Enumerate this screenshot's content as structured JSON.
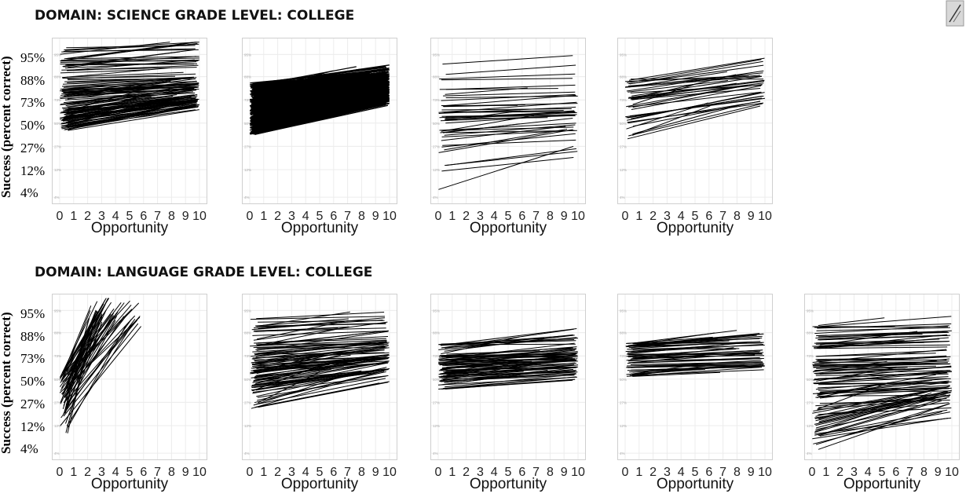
{
  "rows": [
    {
      "title": "DOMAIN: SCIENCE     GRADE LEVEL: COLLEGE",
      "ylabel": "Success (percent correct)",
      "yticks": [
        "95%",
        "88%",
        "73%",
        "50%",
        "27%",
        "12%",
        "4%"
      ]
    },
    {
      "title": "DOMAIN: LANGUAGE     GRADE LEVEL: COLLEGE",
      "ylabel": "Success (percent correct)",
      "yticks": [
        "95%",
        "88%",
        "73%",
        "50%",
        "27%",
        "12%",
        "4%"
      ]
    }
  ],
  "xlabel": "Opportunity",
  "icons": {
    "corner": "expand-corner-icon"
  },
  "chart_data": [
    {
      "type": "line",
      "row": 0,
      "panel": 1,
      "xlabel": "Opportunity",
      "ylabel": "Success (percent correct)",
      "xlim": [
        0,
        10
      ],
      "y_scale": "logit",
      "yticks": [
        "4%",
        "12%",
        "27%",
        "50%",
        "73%",
        "88%",
        "95%"
      ],
      "xticks": [
        0,
        1,
        2,
        3,
        4,
        5,
        6,
        7,
        8,
        9,
        10
      ],
      "n_lines": 130,
      "start_range": [
        42,
        97
      ],
      "end_range": [
        62,
        97
      ],
      "x_extent": [
        0,
        10
      ]
    },
    {
      "type": "line",
      "row": 0,
      "panel": 2,
      "xlabel": "Opportunity",
      "ylabel": "Success (percent correct)",
      "xlim": [
        0,
        10
      ],
      "y_scale": "logit",
      "yticks": [
        "4%",
        "12%",
        "27%",
        "50%",
        "73%",
        "88%",
        "95%"
      ],
      "xticks": [
        0,
        1,
        2,
        3,
        4,
        5,
        6,
        7,
        8,
        9,
        10
      ],
      "n_lines": 600,
      "start_range": [
        38,
        85
      ],
      "end_range": [
        68,
        93
      ],
      "x_extent": [
        0,
        10
      ]
    },
    {
      "type": "line",
      "row": 0,
      "panel": 3,
      "xlabel": "Opportunity",
      "ylabel": "Success (percent correct)",
      "xlim": [
        0,
        10
      ],
      "y_scale": "logit",
      "yticks": [
        "4%",
        "12%",
        "27%",
        "50%",
        "73%",
        "88%",
        "95%"
      ],
      "xticks": [
        0,
        1,
        2,
        3,
        4,
        5,
        6,
        7,
        8,
        9,
        10
      ],
      "n_lines": 45,
      "start_range": [
        5,
        95
      ],
      "end_range": [
        12,
        96
      ],
      "x_extent": [
        0,
        10
      ]
    },
    {
      "type": "line",
      "row": 0,
      "panel": 4,
      "xlabel": "Opportunity",
      "ylabel": "Success (percent correct)",
      "xlim": [
        0,
        10
      ],
      "y_scale": "logit",
      "yticks": [
        "4%",
        "12%",
        "27%",
        "50%",
        "73%",
        "88%",
        "95%"
      ],
      "xticks": [
        0,
        1,
        2,
        3,
        4,
        5,
        6,
        7,
        8,
        9,
        10
      ],
      "n_lines": 40,
      "start_range": [
        33,
        89
      ],
      "end_range": [
        62,
        96
      ],
      "x_extent": [
        0,
        10
      ]
    },
    {
      "type": "line",
      "row": 1,
      "panel": 1,
      "xlabel": "Opportunity",
      "ylabel": "Success (percent correct)",
      "xlim": [
        0,
        10
      ],
      "y_scale": "logit",
      "yticks": [
        "4%",
        "12%",
        "27%",
        "50%",
        "73%",
        "88%",
        "95%"
      ],
      "xticks": [
        0,
        1,
        2,
        3,
        4,
        5,
        6,
        7,
        8,
        9,
        10
      ],
      "n_lines": 60,
      "start_range": [
        8,
        60
      ],
      "end_range": [
        90,
        98
      ],
      "x_extent": [
        0,
        6
      ]
    },
    {
      "type": "line",
      "row": 1,
      "panel": 2,
      "xlabel": "Opportunity",
      "ylabel": "Success (percent correct)",
      "xlim": [
        0,
        10
      ],
      "y_scale": "logit",
      "yticks": [
        "4%",
        "12%",
        "27%",
        "50%",
        "73%",
        "88%",
        "95%"
      ],
      "xticks": [
        0,
        1,
        2,
        3,
        4,
        5,
        6,
        7,
        8,
        9,
        10
      ],
      "n_lines": 110,
      "start_range": [
        22,
        94
      ],
      "end_range": [
        45,
        98
      ],
      "x_extent": [
        0,
        10
      ]
    },
    {
      "type": "line",
      "row": 1,
      "panel": 3,
      "xlabel": "Opportunity",
      "ylabel": "Success (percent correct)",
      "xlim": [
        0,
        10
      ],
      "y_scale": "logit",
      "yticks": [
        "4%",
        "12%",
        "27%",
        "50%",
        "73%",
        "88%",
        "95%"
      ],
      "xticks": [
        0,
        1,
        2,
        3,
        4,
        5,
        6,
        7,
        8,
        9,
        10
      ],
      "n_lines": 90,
      "start_range": [
        38,
        85
      ],
      "end_range": [
        45,
        94
      ],
      "x_extent": [
        0,
        10
      ]
    },
    {
      "type": "line",
      "row": 1,
      "panel": 4,
      "xlabel": "Opportunity",
      "ylabel": "Success (percent correct)",
      "xlim": [
        0,
        10
      ],
      "y_scale": "logit",
      "yticks": [
        "4%",
        "12%",
        "27%",
        "50%",
        "73%",
        "88%",
        "95%"
      ],
      "xticks": [
        0,
        1,
        2,
        3,
        4,
        5,
        6,
        7,
        8,
        9,
        10
      ],
      "n_lines": 60,
      "start_range": [
        52,
        83
      ],
      "end_range": [
        56,
        90
      ],
      "x_extent": [
        0,
        10
      ]
    },
    {
      "type": "line",
      "row": 1,
      "panel": 5,
      "xlabel": "Opportunity",
      "ylabel": "Success (percent correct)",
      "xlim": [
        0,
        10
      ],
      "y_scale": "logit",
      "yticks": [
        "4%",
        "12%",
        "27%",
        "50%",
        "73%",
        "88%",
        "95%"
      ],
      "xticks": [
        0,
        1,
        2,
        3,
        4,
        5,
        6,
        7,
        8,
        9,
        10
      ],
      "n_lines": 110,
      "start_range": [
        4,
        92
      ],
      "end_range": [
        12,
        98
      ],
      "x_extent": [
        0,
        10
      ]
    }
  ]
}
